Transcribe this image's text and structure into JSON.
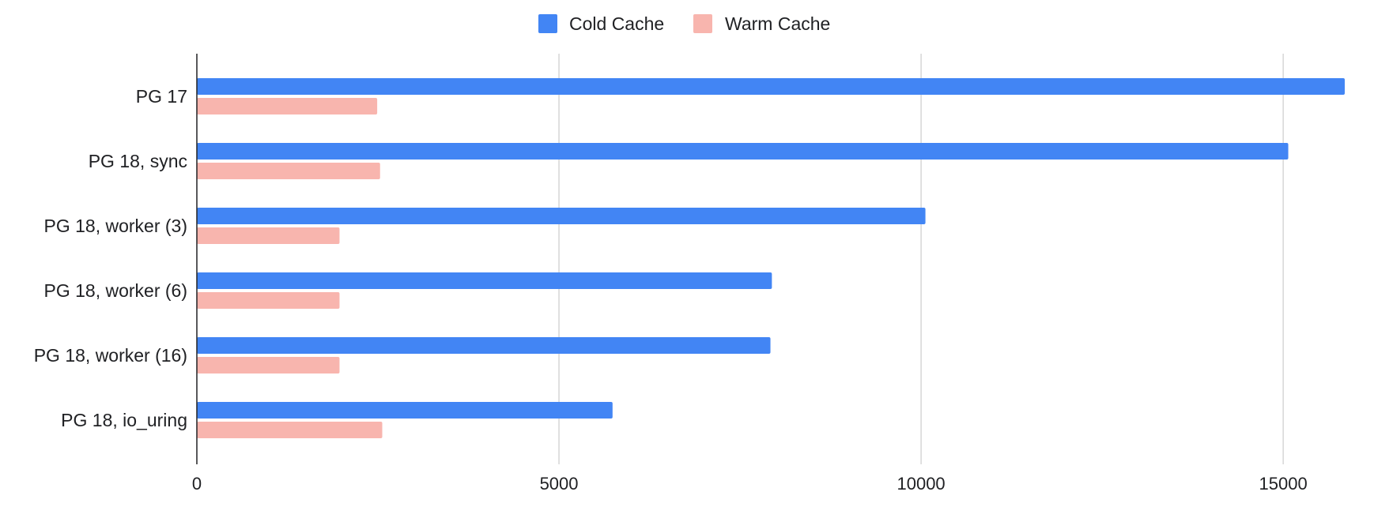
{
  "chart_data": {
    "type": "bar",
    "orientation": "horizontal",
    "title": "",
    "xlabel": "",
    "ylabel": "",
    "categories": [
      "PG 17",
      "PG 18, sync",
      "PG 18, worker (3)",
      "PG 18, worker (6)",
      "PG 18, worker (16)",
      "PG 18, io_uring"
    ],
    "series": [
      {
        "name": "Cold Cache",
        "color": "#4285f4",
        "values": [
          15850,
          15070,
          10060,
          7940,
          7920,
          5740
        ]
      },
      {
        "name": "Warm Cache",
        "color": "#f8b5ae",
        "values": [
          2490,
          2530,
          1970,
          1970,
          1970,
          2560
        ]
      }
    ],
    "x_ticks": [
      "0",
      "5000",
      "10000",
      "15000"
    ],
    "xlim": [
      0,
      15850
    ],
    "grid": true,
    "legend": "top-center"
  }
}
